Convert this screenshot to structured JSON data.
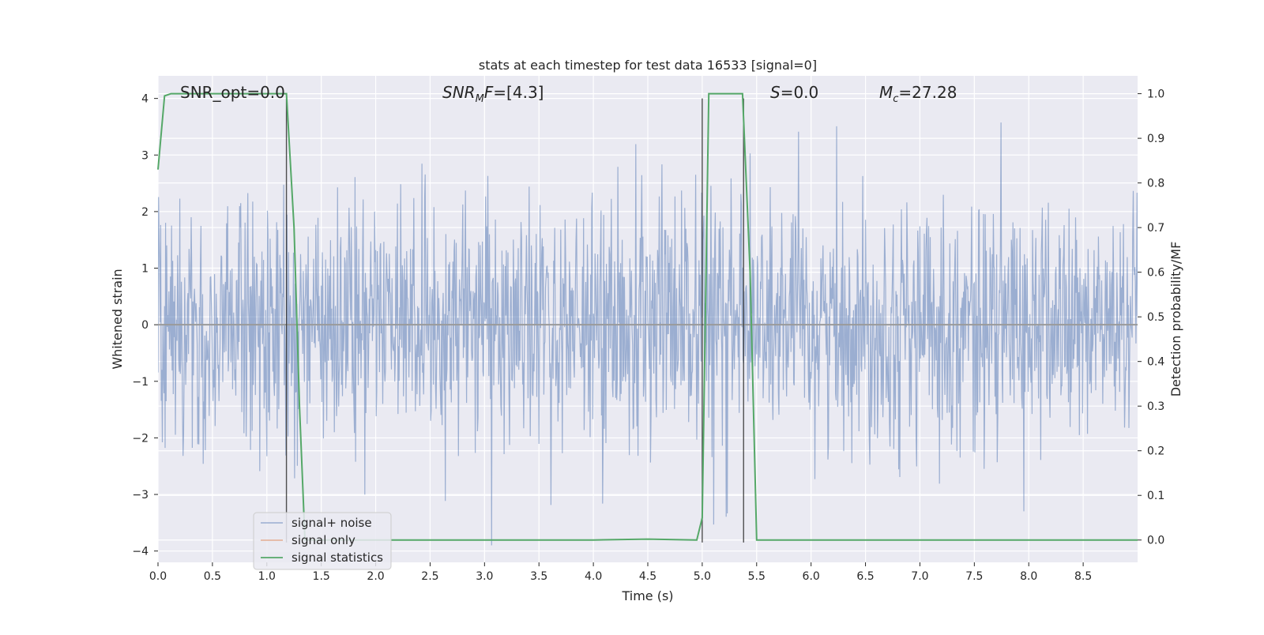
{
  "chart_data": {
    "type": "line",
    "title": "stats at each timestep for test data 16533 [signal=0]",
    "xlabel": "Time (s)",
    "ylabel": "Whitened strain",
    "ylabel_right": "Detection probability/MF",
    "xlim": [
      0.0,
      9.0
    ],
    "ylim": [
      -4.2,
      4.4
    ],
    "ylim_right": [
      -0.05,
      1.04
    ],
    "x_ticks": [
      0.0,
      0.5,
      1.0,
      1.5,
      2.0,
      2.5,
      3.0,
      3.5,
      4.0,
      4.5,
      5.0,
      5.5,
      6.0,
      6.5,
      7.0,
      7.5,
      8.0,
      8.5
    ],
    "x_tick_labels": [
      "0.0",
      "0.5",
      "1.0",
      "1.5",
      "2.0",
      "2.5",
      "3.0",
      "3.5",
      "4.0",
      "4.5",
      "5.0",
      "5.5",
      "6.0",
      "6.5",
      "7.0",
      "7.5",
      "8.0",
      "8.5"
    ],
    "y_ticks": [
      4,
      3,
      2,
      1,
      0,
      -1,
      -2,
      -3,
      -4
    ],
    "y_tick_labels": [
      "4",
      "3",
      "2",
      "1",
      "0",
      "−1",
      "−2",
      "−3",
      "−4"
    ],
    "y_right_ticks": [
      1.0,
      0.9,
      0.8,
      0.7,
      0.6,
      0.5,
      0.4,
      0.3,
      0.2,
      0.1,
      0.0
    ],
    "y_right_tick_labels": [
      "1.0",
      "0.9",
      "0.8",
      "0.7",
      "0.6",
      "0.5",
      "0.4",
      "0.3",
      "0.2",
      "0.1",
      "0.0"
    ],
    "grid": true,
    "legend_position": "lower-left",
    "annotations": {
      "snr_opt": "SNR_opt=0.0",
      "snr_mf": "=[4.3]",
      "s_value": "=0.0",
      "mc_value": "=27.28"
    },
    "series": [
      {
        "name": "signal+ noise",
        "color": "#4c72b0",
        "axis": "left",
        "style": "dense noise trace",
        "sampling_rate_hz": 200,
        "envelope_typical": [
          -1.5,
          1.7
        ],
        "envelope_max": [
          -3.9,
          4.0
        ]
      },
      {
        "name": "signal only",
        "color": "#dd8452",
        "axis": "left",
        "x": [
          0.0,
          9.0
        ],
        "y": [
          0.0,
          0.0
        ]
      },
      {
        "name": "signal statistics",
        "color": "#55a868",
        "axis": "right",
        "x": [
          0.0,
          0.06,
          0.12,
          0.4,
          0.8,
          1.18,
          1.25,
          1.3,
          1.35,
          1.5,
          2.0,
          3.0,
          4.0,
          4.5,
          4.95,
          5.0,
          5.06,
          5.2,
          5.37,
          5.44,
          5.5,
          6.0,
          7.0,
          8.0,
          9.0
        ],
        "y": [
          0.83,
          0.995,
          1.0,
          1.0,
          1.0,
          1.0,
          0.7,
          0.3,
          0.0,
          0.0,
          0.0,
          0.0,
          0.0,
          0.002,
          0.0,
          0.05,
          1.0,
          1.0,
          1.0,
          0.6,
          0.0,
          0.0,
          0.0,
          0.0,
          0.0
        ]
      }
    ],
    "vertical_markers": [
      {
        "x": 1.18,
        "y_range": [
          -3.85,
          4.0
        ]
      },
      {
        "x": 5.0,
        "y_range": [
          -3.85,
          4.0
        ]
      },
      {
        "x": 5.38,
        "y_range": [
          -3.85,
          4.0
        ]
      }
    ]
  },
  "colors": {
    "axes_bg": "#eaeaf2",
    "grid": "#ffffff",
    "noise": "#4c72b0",
    "signal": "#dd8452",
    "stats": "#55a868",
    "marker": "#333333"
  }
}
